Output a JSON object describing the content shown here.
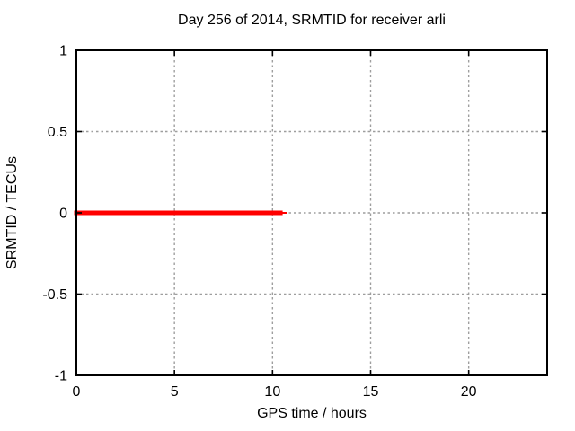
{
  "window": {
    "background": "#ffffff"
  },
  "chart_data": {
    "type": "line",
    "title": "Day 256 of 2014, SRMTID for receiver arli",
    "xlabel": "GPS time / hours",
    "ylabel": "SRMTID / TECUs",
    "xlim": [
      0,
      24
    ],
    "ylim": [
      -1,
      1
    ],
    "xticks": {
      "values": [
        0,
        5,
        10,
        15,
        20
      ],
      "labels": [
        "0",
        "5",
        "10",
        "15",
        "20"
      ]
    },
    "yticks": {
      "values": [
        1,
        0.5,
        0,
        -0.5,
        -1
      ],
      "labels": [
        "1",
        "0.5",
        "0",
        "-0.5",
        "-1"
      ]
    },
    "grid": {
      "show": true,
      "color": "#9e9e9e",
      "style": "dashed"
    },
    "axis_color": "#000000",
    "legend": "none",
    "series": [
      {
        "name": "SRMTID",
        "color": "#ff0000",
        "description": "SRMTID equals 0 TECUs from 0 to about 10.5 GPS hours; no data afterwards",
        "segments": [
          {
            "x1": 0,
            "x2": 10.4,
            "y": 0,
            "stroke_width": 5
          },
          {
            "x1": 10.4,
            "x2": 10.7,
            "y": 0,
            "stroke_width": 2
          }
        ]
      }
    ]
  }
}
